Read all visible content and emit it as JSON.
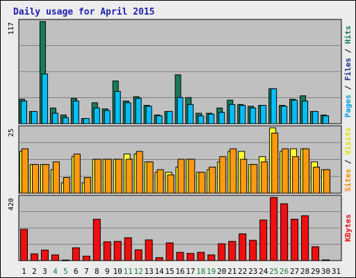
{
  "chart_data": {
    "type": "bar",
    "title": "Daily usage for April 2015",
    "categories": [
      "1",
      "2",
      "3",
      "4",
      "5",
      "6",
      "7",
      "8",
      "9",
      "10",
      "11",
      "12",
      "13",
      "14",
      "15",
      "16",
      "17",
      "18",
      "19",
      "20",
      "21",
      "22",
      "23",
      "24",
      "25",
      "26",
      "27",
      "28",
      "29",
      "30",
      "31"
    ],
    "weekend_days": [
      "4",
      "5",
      "11",
      "12",
      "18",
      "19",
      "25",
      "26"
    ],
    "colors": {
      "hits": "#1a7a5a",
      "files": "#00bfff",
      "pages": "#1a2a8a",
      "visits": "#ffff30",
      "sites": "#ff9910",
      "kbytes": "#ee1010",
      "weekday_label": "#000000",
      "weekend_label": "#1a7a3a",
      "title": "#1f1fb0",
      "plot_bg": "#c0c0c0"
    },
    "panels": [
      {
        "id": "hits",
        "ymax_label": "117",
        "ymax": 117,
        "side_label": [
          {
            "text": "Pages",
            "color": "#00a0e0"
          },
          {
            "text": " / ",
            "color": "#000000"
          },
          {
            "text": "Files",
            "color": "#1a2a8a"
          },
          {
            "text": " / ",
            "color": "#000000"
          },
          {
            "text": "Hits",
            "color": "#1a7a5a"
          }
        ],
        "series": [
          {
            "name": "Hits",
            "color": "#1a7a5a",
            "values": [
              28,
              14,
              117,
              18,
              10,
              29,
              6,
              24,
              17,
              49,
              26,
              31,
              21,
              10,
              14,
              56,
              30,
              12,
              12,
              18,
              27,
              22,
              20,
              21,
              40,
              21,
              28,
              32,
              14,
              10,
              0
            ]
          },
          {
            "name": "Files",
            "color": "#00bfff",
            "values": [
              26,
              14,
              57,
              12,
              7,
              26,
              6,
              18,
              15,
              37,
              24,
              29,
              20,
              9,
              14,
              30,
              22,
              9,
              11,
              13,
              22,
              21,
              18,
              21,
              40,
              20,
              27,
              26,
              14,
              9,
              0
            ]
          },
          {
            "name": "Pages",
            "color": "#1a2a8a",
            "values": [
              0,
              0,
              0,
              0,
              0,
              0,
              0,
              0,
              0,
              0,
              0,
              0,
              0,
              0,
              0,
              0,
              0,
              0,
              0,
              0,
              0,
              0,
              0,
              0,
              0,
              0,
              0,
              0,
              0,
              0,
              0
            ]
          }
        ]
      },
      {
        "id": "visits",
        "ymax_label": "25",
        "ymax": 25,
        "side_label": [
          {
            "text": "Sites",
            "color": "#ff8800"
          },
          {
            "text": " / ",
            "color": "#000000"
          },
          {
            "text": "Visits",
            "color": "#e0e000"
          }
        ],
        "series": [
          {
            "name": "Visits",
            "color": "#ffff30",
            "values": [
              16,
              11,
              11,
              9,
              4,
              14,
              4,
              13,
              13,
              13,
              15,
              15,
              12,
              8,
              8,
              10,
              13,
              8,
              9,
              12,
              16,
              16,
              11,
              14,
              25,
              16,
              17,
              17,
              12,
              9,
              0
            ]
          },
          {
            "name": "Sites",
            "color": "#ff9910",
            "values": [
              17,
              11,
              11,
              12,
              6,
              15,
              6,
              13,
              13,
              13,
              13,
              16,
              12,
              9,
              7,
              13,
              13,
              8,
              10,
              14,
              17,
              13,
              11,
              12,
              23,
              17,
              14,
              17,
              10,
              9,
              0
            ]
          }
        ]
      },
      {
        "id": "kbytes",
        "ymax_label": "420",
        "ymax": 420,
        "side_label": [
          {
            "text": "KBytes",
            "color": "#ee1010"
          }
        ],
        "series": [
          {
            "name": "KBytes",
            "color": "#ee1010",
            "values": [
              208,
              45,
              70,
              38,
              4,
              85,
              30,
              275,
              125,
              128,
              152,
              72,
              138,
              20,
              118,
              55,
              48,
              55,
              38,
              112,
              128,
              178,
              135,
              270,
              420,
              378,
              275,
              298,
              92,
              5,
              0
            ]
          }
        ]
      }
    ]
  }
}
